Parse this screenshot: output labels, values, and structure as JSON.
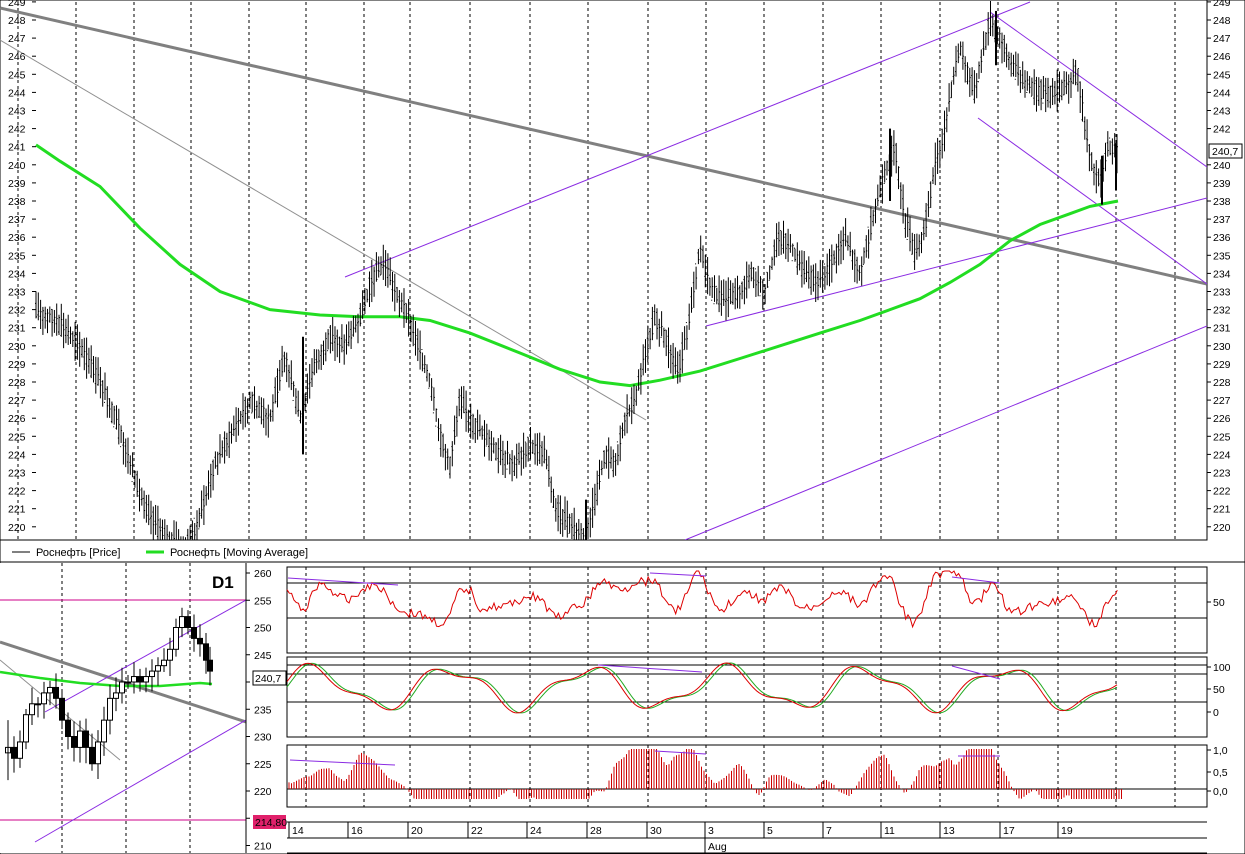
{
  "chart_data": [
    {
      "type": "candlestick",
      "y_ticks": [
        249,
        248,
        247,
        246,
        245,
        244,
        243,
        242,
        241,
        240,
        239,
        238,
        237,
        236,
        235,
        234,
        233,
        232,
        231,
        230,
        229,
        228,
        227,
        226,
        225,
        224,
        223,
        222,
        221,
        220
      ],
      "ylim": [
        219.3,
        249.0
      ],
      "current_price": "240,7",
      "legend": [
        {
          "label": "Роснефть [Price]",
          "color": "#000000"
        },
        {
          "label": "Роснефть [Moving Average]",
          "color": "#22cc22"
        }
      ],
      "price_path": [
        [
          0,
          232.5
        ],
        [
          30,
          232
        ],
        [
          55,
          231.5
        ],
        [
          80,
          230
        ],
        [
          100,
          228
        ],
        [
          115,
          226
        ],
        [
          130,
          223.5
        ],
        [
          145,
          221
        ],
        [
          165,
          219.5
        ],
        [
          185,
          218.8
        ],
        [
          200,
          220.5
        ],
        [
          215,
          223.5
        ],
        [
          230,
          225
        ],
        [
          250,
          227
        ],
        [
          270,
          226
        ],
        [
          285,
          229.5
        ],
        [
          300,
          226
        ],
        [
          315,
          229
        ],
        [
          330,
          230.5
        ],
        [
          345,
          230
        ],
        [
          360,
          231.5
        ],
        [
          373,
          233.8
        ],
        [
          385,
          234.5
        ],
        [
          395,
          233
        ],
        [
          405,
          232
        ],
        [
          418,
          230
        ],
        [
          430,
          228
        ],
        [
          440,
          225
        ],
        [
          450,
          223.5
        ],
        [
          460,
          227
        ],
        [
          470,
          226
        ],
        [
          485,
          225
        ],
        [
          500,
          224
        ],
        [
          515,
          223.5
        ],
        [
          530,
          224.5
        ],
        [
          545,
          224
        ],
        [
          555,
          221
        ],
        [
          565,
          220.5
        ],
        [
          575,
          219.8
        ],
        [
          585,
          219.5
        ],
        [
          595,
          221.5
        ],
        [
          605,
          224
        ],
        [
          615,
          223.5
        ],
        [
          625,
          226
        ],
        [
          635,
          227
        ],
        [
          645,
          229.5
        ],
        [
          655,
          231.5
        ],
        [
          665,
          230.5
        ],
        [
          678,
          228.5
        ],
        [
          688,
          231
        ],
        [
          700,
          235.5
        ],
        [
          712,
          233
        ],
        [
          725,
          232.5
        ],
        [
          740,
          233
        ],
        [
          752,
          234
        ],
        [
          765,
          233
        ],
        [
          778,
          236
        ],
        [
          790,
          235.5
        ],
        [
          805,
          234
        ],
        [
          818,
          233.5
        ],
        [
          830,
          234.5
        ],
        [
          845,
          236
        ],
        [
          860,
          234
        ],
        [
          875,
          237.5
        ],
        [
          885,
          239.5
        ],
        [
          895,
          241
        ],
        [
          905,
          237
        ],
        [
          915,
          235
        ],
        [
          925,
          236.5
        ],
        [
          935,
          240
        ],
        [
          945,
          242
        ],
        [
          952,
          244.5
        ],
        [
          960,
          246.5
        ],
        [
          968,
          245
        ],
        [
          975,
          244
        ],
        [
          982,
          246
        ],
        [
          990,
          248
        ],
        [
          1000,
          247
        ],
        [
          1012,
          245.5
        ],
        [
          1025,
          244.5
        ],
        [
          1040,
          244
        ],
        [
          1055,
          244
        ],
        [
          1068,
          244.5
        ],
        [
          1078,
          245
        ],
        [
          1085,
          242
        ],
        [
          1092,
          240
        ],
        [
          1100,
          239
        ],
        [
          1108,
          241
        ],
        [
          1118,
          240.7
        ]
      ],
      "moving_average": [
        [
          36,
          241.1
        ],
        [
          60,
          240.2
        ],
        [
          100,
          238.8
        ],
        [
          140,
          236.5
        ],
        [
          180,
          234.5
        ],
        [
          220,
          233
        ],
        [
          270,
          232
        ],
        [
          320,
          231.7
        ],
        [
          360,
          231.6
        ],
        [
          400,
          231.6
        ],
        [
          430,
          231.4
        ],
        [
          470,
          230.7
        ],
        [
          520,
          229.6
        ],
        [
          560,
          228.7
        ],
        [
          600,
          228
        ],
        [
          630,
          227.8
        ],
        [
          660,
          228.1
        ],
        [
          700,
          228.6
        ],
        [
          740,
          229.3
        ],
        [
          780,
          230
        ],
        [
          820,
          230.7
        ],
        [
          860,
          231.4
        ],
        [
          890,
          232
        ],
        [
          920,
          232.6
        ],
        [
          950,
          233.5
        ],
        [
          980,
          234.5
        ],
        [
          1010,
          235.8
        ],
        [
          1040,
          236.7
        ],
        [
          1070,
          237.3
        ],
        [
          1090,
          237.7
        ],
        [
          1118,
          238
        ]
      ],
      "x_ticks": [
        "14",
        "16",
        "20",
        "22",
        "24",
        "28",
        "30",
        "3",
        "5",
        "7",
        "11",
        "13",
        "17",
        "19"
      ],
      "x_month_label": "Aug"
    },
    {
      "type": "candlestick",
      "timeframe_label": "D1",
      "y_ticks": [
        260,
        255,
        250,
        245,
        240,
        235,
        230,
        225,
        220,
        215,
        210
      ],
      "current_price": "240,7",
      "low_marker": "214,80"
    },
    {
      "type": "line",
      "indicator": "oscillator",
      "y_tick_labels": [
        "50"
      ],
      "levels": [
        70,
        30
      ]
    },
    {
      "type": "line",
      "indicator": "stochastic",
      "y_tick_labels": [
        "100",
        "50",
        "0"
      ],
      "levels": [
        80,
        20
      ]
    },
    {
      "type": "bar",
      "indicator": "histogram",
      "y_tick_labels": [
        "1,0",
        "0,5",
        "0,0"
      ]
    }
  ]
}
